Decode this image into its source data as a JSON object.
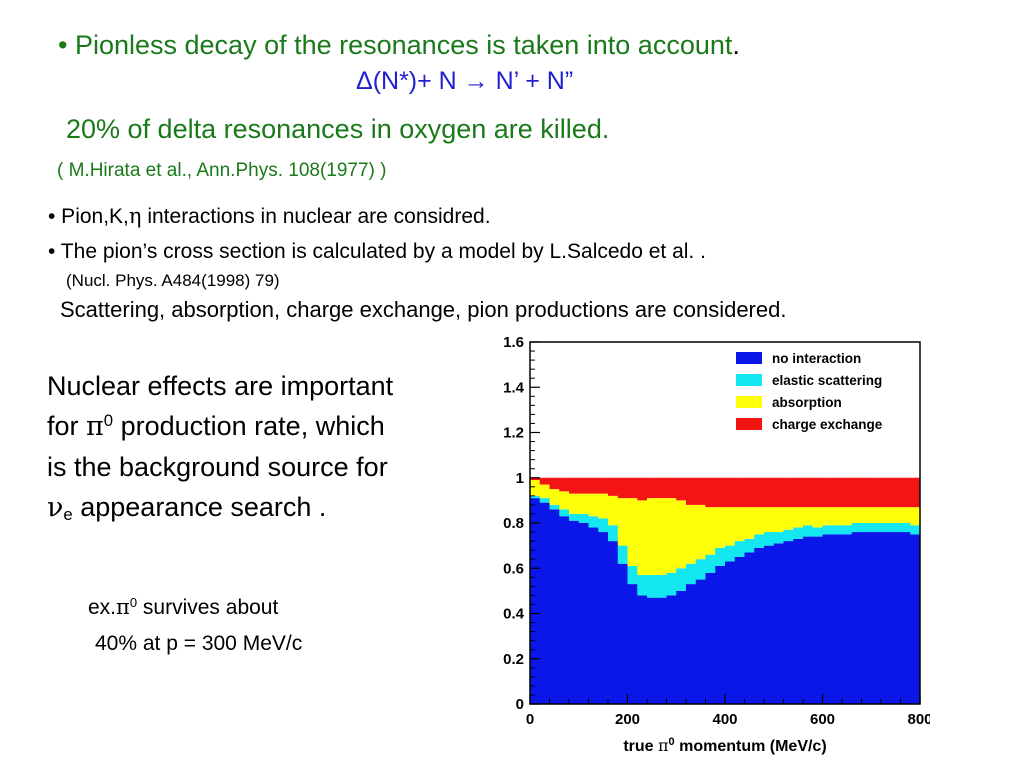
{
  "header": {
    "line1_bullet": "•",
    "line1_text": "Pionless decay of the resonances is taken into account",
    "line1_period": ".",
    "line2": "Δ(N*)+ N → N’ + N”",
    "line3": "20% of delta resonances in oxygen are killed.",
    "line4": "( M.Hirata et al., Ann.Phys. 108(1977)  )"
  },
  "bullets": {
    "b1_prefix": "• Pion,K,",
    "b1_greek": "η",
    "b1_suffix": " interactions in nuclear are considred.",
    "b2": "• The pion’s cross section is calculated by  a model by L.Salcedo et al. .",
    "b3": "(Nucl. Phys. A484(1998) 79)",
    "b4": "Scattering, absorption, charge exchange, pion productions are considered."
  },
  "side": {
    "line1": "Nuclear effects are important",
    "line2_prefix": "for ",
    "line2_greek": "π",
    "line2_sup": "0",
    "line2_suffix": " production rate, which",
    "line3": "is the background source for",
    "line4_greek": "ν",
    "line4_sub": "e",
    "line4_suffix": " appearance search ."
  },
  "example": {
    "prefix": "ex.",
    "greek": "π",
    "sup": "0",
    "line1_suffix": " survives about",
    "line2": "40% at p = 300 MeV/c"
  },
  "colors": {
    "text_green": "#1a7a1a",
    "text_blue": "#1f1fd0",
    "no_interaction": "#0a17e8",
    "elastic_scattering": "#14e6f2",
    "absorption": "#ffff0a",
    "charge_exchange": "#f51414"
  },
  "chart_data": {
    "type": "area",
    "stacked": true,
    "xlabel_prefix": "true ",
    "xlabel_greek": "π",
    "xlabel_sup": "0",
    "xlabel_suffix": " momentum (MeV/c)",
    "ylabel": "",
    "xlim": [
      0,
      800
    ],
    "ylim": [
      0,
      1.6
    ],
    "xticks": [
      "0",
      "200",
      "400",
      "600",
      "800"
    ],
    "yticks": [
      "0",
      "0.2",
      "0.4",
      "0.6",
      "0.8",
      "1",
      "1.2",
      "1.4",
      "1.6"
    ],
    "ytick_values": [
      0,
      0.2,
      0.4,
      0.6,
      0.8,
      1,
      1.2,
      1.4,
      1.6
    ],
    "grid": false,
    "legend_position": "top-right",
    "x": [
      10,
      30,
      50,
      70,
      90,
      110,
      130,
      150,
      170,
      190,
      210,
      230,
      250,
      270,
      290,
      310,
      330,
      350,
      370,
      390,
      410,
      430,
      450,
      470,
      490,
      510,
      530,
      550,
      570,
      590,
      610,
      630,
      650,
      670,
      690,
      710,
      730,
      750,
      770,
      790
    ],
    "series": [
      {
        "name": "no interaction",
        "color_key": "no_interaction",
        "values": [
          0.91,
          0.89,
          0.86,
          0.83,
          0.81,
          0.8,
          0.78,
          0.76,
          0.72,
          0.62,
          0.53,
          0.48,
          0.47,
          0.47,
          0.48,
          0.5,
          0.53,
          0.55,
          0.58,
          0.61,
          0.63,
          0.65,
          0.67,
          0.69,
          0.7,
          0.71,
          0.72,
          0.73,
          0.74,
          0.74,
          0.75,
          0.75,
          0.75,
          0.76,
          0.76,
          0.76,
          0.76,
          0.76,
          0.76,
          0.75
        ]
      },
      {
        "name": "elastic scattering",
        "color_key": "elastic_scattering",
        "values": [
          0.01,
          0.02,
          0.02,
          0.03,
          0.03,
          0.04,
          0.05,
          0.06,
          0.07,
          0.08,
          0.08,
          0.09,
          0.1,
          0.1,
          0.1,
          0.1,
          0.09,
          0.09,
          0.08,
          0.08,
          0.07,
          0.07,
          0.06,
          0.06,
          0.06,
          0.05,
          0.05,
          0.05,
          0.05,
          0.04,
          0.04,
          0.04,
          0.04,
          0.04,
          0.04,
          0.04,
          0.04,
          0.04,
          0.04,
          0.04
        ]
      },
      {
        "name": "absorption",
        "color_key": "absorption",
        "values": [
          0.07,
          0.06,
          0.07,
          0.08,
          0.09,
          0.09,
          0.1,
          0.11,
          0.13,
          0.21,
          0.3,
          0.33,
          0.34,
          0.34,
          0.33,
          0.3,
          0.26,
          0.24,
          0.21,
          0.18,
          0.17,
          0.15,
          0.14,
          0.12,
          0.11,
          0.11,
          0.1,
          0.09,
          0.08,
          0.09,
          0.08,
          0.08,
          0.08,
          0.07,
          0.07,
          0.07,
          0.07,
          0.07,
          0.07,
          0.08
        ]
      },
      {
        "name": "charge exchange",
        "color_key": "charge_exchange",
        "values": [
          0.01,
          0.03,
          0.05,
          0.06,
          0.07,
          0.07,
          0.07,
          0.07,
          0.08,
          0.09,
          0.09,
          0.1,
          0.09,
          0.09,
          0.09,
          0.1,
          0.12,
          0.12,
          0.13,
          0.13,
          0.13,
          0.13,
          0.13,
          0.13,
          0.13,
          0.13,
          0.13,
          0.13,
          0.13,
          0.13,
          0.13,
          0.13,
          0.13,
          0.13,
          0.13,
          0.13,
          0.13,
          0.13,
          0.13,
          0.13
        ]
      }
    ]
  }
}
